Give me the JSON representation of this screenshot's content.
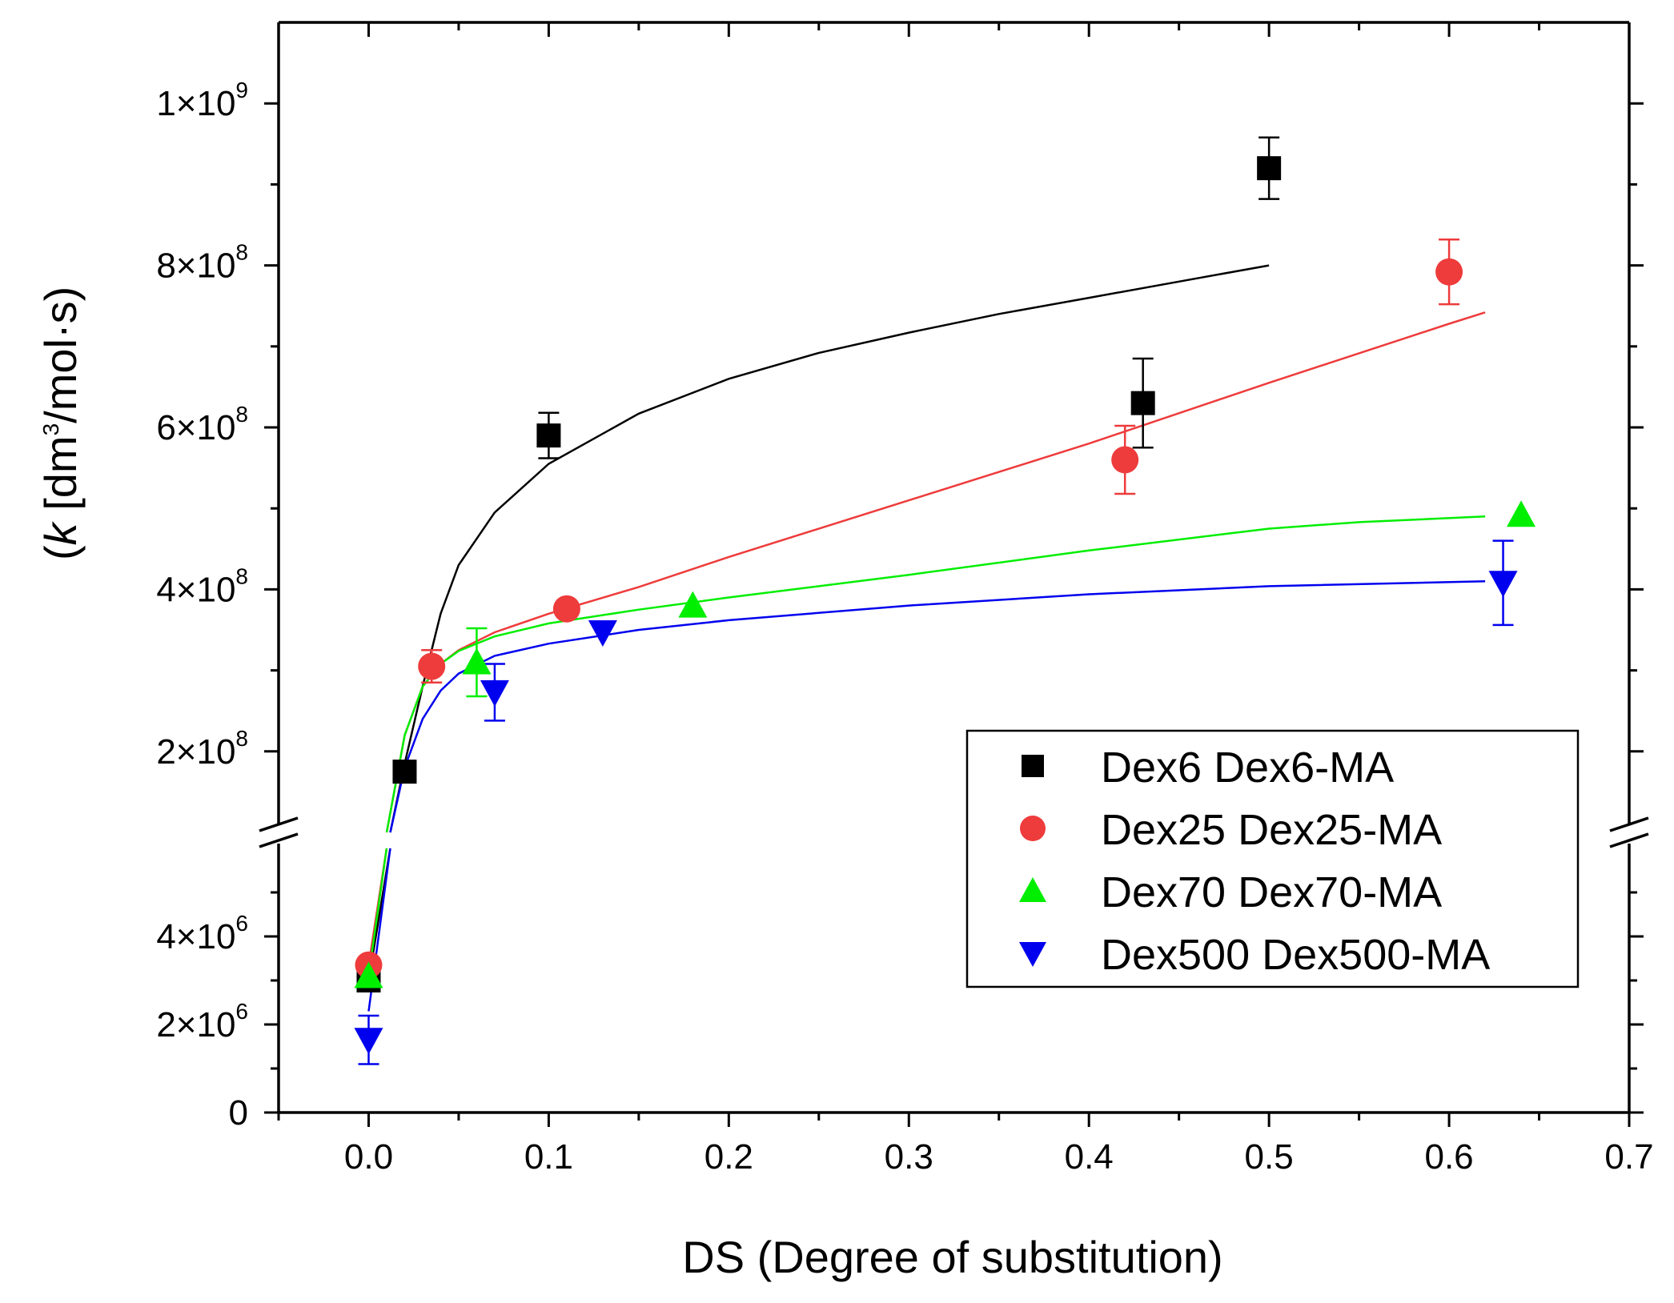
{
  "chart_data": {
    "type": "scatter",
    "xlabel": "DS  (Degree of substitution)",
    "ylabel_prefix": "(",
    "ylabel_k": "k",
    "ylabel_unit_pre": " [dm",
    "ylabel_unit_sup": "3",
    "ylabel_unit_post": "/mol·s)",
    "xlim": [
      -0.05,
      0.7
    ],
    "x_ticks": [
      {
        "value": 0.0,
        "label": "0.0"
      },
      {
        "value": 0.1,
        "label": "0.1"
      },
      {
        "value": 0.2,
        "label": "0.2"
      },
      {
        "value": 0.3,
        "label": "0.3"
      },
      {
        "value": 0.4,
        "label": "0.4"
      },
      {
        "value": 0.5,
        "label": "0.5"
      },
      {
        "value": 0.6,
        "label": "0.6"
      },
      {
        "value": 0.7,
        "label": "0.7"
      }
    ],
    "y_axis_break": {
      "lower_range": [
        0,
        6000000
      ],
      "upper_range": [
        100000000,
        1100000000
      ]
    },
    "y_ticks_lower": [
      {
        "value": 0,
        "label": "0",
        "exp": ""
      },
      {
        "value": 2000000,
        "label": "2×10",
        "exp": "6"
      },
      {
        "value": 4000000,
        "label": "4×10",
        "exp": "6"
      }
    ],
    "y_ticks_upper": [
      {
        "value": 200000000,
        "label": "2×10",
        "exp": "8"
      },
      {
        "value": 400000000,
        "label": "4×10",
        "exp": "8"
      },
      {
        "value": 600000000,
        "label": "6×10",
        "exp": "8"
      },
      {
        "value": 800000000,
        "label": "8×10",
        "exp": "8"
      },
      {
        "value": 1000000000,
        "label": "1×10",
        "exp": "9"
      }
    ],
    "series": [
      {
        "name": "Dex6 Dex6-MA",
        "color": "#000000",
        "marker": "square",
        "points": [
          {
            "x": 0.0,
            "y": 3000000,
            "err": 0
          },
          {
            "x": 0.02,
            "y": 175000000,
            "err": 0
          },
          {
            "x": 0.1,
            "y": 590000000,
            "err": 28000000
          },
          {
            "x": 0.43,
            "y": 630000000,
            "err": 55000000
          },
          {
            "x": 0.5,
            "y": 920000000,
            "err": 38000000
          }
        ],
        "fit": [
          [
            0.012,
            100000000
          ],
          [
            0.02,
            185000000
          ],
          [
            0.03,
            280000000
          ],
          [
            0.04,
            370000000
          ],
          [
            0.05,
            430000000
          ],
          [
            0.07,
            495000000
          ],
          [
            0.1,
            555000000
          ],
          [
            0.15,
            617000000
          ],
          [
            0.2,
            660000000
          ],
          [
            0.25,
            692000000
          ],
          [
            0.3,
            717000000
          ],
          [
            0.35,
            740000000
          ],
          [
            0.4,
            760000000
          ],
          [
            0.45,
            780000000
          ],
          [
            0.5,
            800000000
          ]
        ]
      },
      {
        "name": "Dex25 Dex25-MA",
        "color": "#ee3b3b",
        "marker": "circle",
        "points": [
          {
            "x": 0.0,
            "y": 3350000,
            "err": 0
          },
          {
            "x": 0.035,
            "y": 305000000,
            "err": 20000000
          },
          {
            "x": 0.11,
            "y": 376000000,
            "err": 0
          },
          {
            "x": 0.42,
            "y": 560000000,
            "err": 42000000
          },
          {
            "x": 0.6,
            "y": 792000000,
            "err": 40000000
          }
        ],
        "fit": [
          [
            0.01,
            100000000
          ],
          [
            0.02,
            220000000
          ],
          [
            0.03,
            280000000
          ],
          [
            0.04,
            308000000
          ],
          [
            0.05,
            325000000
          ],
          [
            0.07,
            347000000
          ],
          [
            0.1,
            370000000
          ],
          [
            0.15,
            403000000
          ],
          [
            0.2,
            440000000
          ],
          [
            0.3,
            510000000
          ],
          [
            0.4,
            580000000
          ],
          [
            0.5,
            655000000
          ],
          [
            0.6,
            728000000
          ],
          [
            0.62,
            742000000
          ]
        ]
      },
      {
        "name": "Dex70 Dex70-MA",
        "color": "#00ee00",
        "marker": "triangle-up",
        "points": [
          {
            "x": 0.0,
            "y": 3100000,
            "err": 0
          },
          {
            "x": 0.06,
            "y": 310000000,
            "err": 42000000
          },
          {
            "x": 0.18,
            "y": 380000000,
            "err": 0
          },
          {
            "x": 0.64,
            "y": 492000000,
            "err": 0
          }
        ],
        "fit": [
          [
            0.01,
            100000000
          ],
          [
            0.02,
            220000000
          ],
          [
            0.03,
            280000000
          ],
          [
            0.04,
            308000000
          ],
          [
            0.05,
            324000000
          ],
          [
            0.07,
            342000000
          ],
          [
            0.1,
            358000000
          ],
          [
            0.15,
            375000000
          ],
          [
            0.2,
            390000000
          ],
          [
            0.3,
            418000000
          ],
          [
            0.4,
            448000000
          ],
          [
            0.5,
            475000000
          ],
          [
            0.55,
            483000000
          ],
          [
            0.62,
            490000000
          ]
        ]
      },
      {
        "name": "Dex500 Dex500-MA",
        "color": "#0000ee",
        "marker": "triangle-down",
        "points": [
          {
            "x": 0.0,
            "y": 1650000,
            "err": 550000
          },
          {
            "x": 0.07,
            "y": 273000000,
            "err": 35000000
          },
          {
            "x": 0.13,
            "y": 347000000,
            "err": 0
          },
          {
            "x": 0.63,
            "y": 408000000,
            "err": 52000000
          }
        ],
        "fit": [
          [
            0.012,
            100000000
          ],
          [
            0.02,
            180000000
          ],
          [
            0.03,
            240000000
          ],
          [
            0.04,
            275000000
          ],
          [
            0.05,
            296000000
          ],
          [
            0.07,
            318000000
          ],
          [
            0.1,
            333000000
          ],
          [
            0.15,
            350000000
          ],
          [
            0.2,
            362000000
          ],
          [
            0.3,
            380000000
          ],
          [
            0.4,
            394000000
          ],
          [
            0.5,
            404000000
          ],
          [
            0.62,
            410000000
          ]
        ]
      }
    ],
    "lower_fit_segments": [
      {
        "color": "#000000",
        "from": [
          0.0,
          3000000
        ],
        "to": [
          0.012,
          6000000
        ]
      },
      {
        "color": "#ee3b3b",
        "from": [
          0.0,
          3350000
        ],
        "to": [
          0.01,
          6000000
        ]
      },
      {
        "color": "#00ee00",
        "from": [
          0.0,
          3100000
        ],
        "to": [
          0.01,
          6000000
        ]
      },
      {
        "color": "#0000ee",
        "from": [
          0.0,
          2300000
        ],
        "to": [
          0.012,
          6000000
        ]
      }
    ],
    "legend": {
      "position": "bottom-right"
    }
  }
}
